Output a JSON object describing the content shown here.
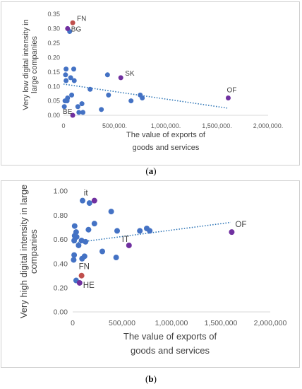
{
  "chart_data": [
    {
      "type": "scatter",
      "panel_label": "a",
      "xlabel_lines": [
        "The value of exports of",
        "goods and services"
      ],
      "ylabel_lines": [
        "Very low digital intensity in",
        "large companies"
      ],
      "xlim": [
        0,
        2000000
      ],
      "ylim": [
        0,
        0.35
      ],
      "x_ticks": [
        "0",
        "500,000.",
        "1,000,000.",
        "1,500,000.",
        "2,000,000."
      ],
      "y_ticks": [
        "0.00",
        "0.05",
        "0.10",
        "0.15",
        "0.20",
        "0.25",
        "0.30",
        "0.35"
      ],
      "x_tick_values": [
        0,
        500000,
        1000000,
        1500000,
        2000000
      ],
      "y_tick_values": [
        0,
        0.05,
        0.1,
        0.15,
        0.2,
        0.25,
        0.3,
        0.35
      ],
      "trendline": {
        "style": "dotted",
        "color": "#2e75b6",
        "x": [
          0,
          1600000
        ],
        "y": [
          0.108,
          0.025
        ]
      },
      "points": [
        {
          "x": 8000,
          "y": 0.03,
          "color": "#4472c4"
        },
        {
          "x": 15000,
          "y": 0.05,
          "color": "#4472c4"
        },
        {
          "x": 20000,
          "y": 0.14,
          "color": "#4472c4"
        },
        {
          "x": 25000,
          "y": 0.16,
          "color": "#4472c4"
        },
        {
          "x": 25000,
          "y": 0.12,
          "color": "#4472c4"
        },
        {
          "x": 35000,
          "y": 0.05,
          "color": "#4472c4"
        },
        {
          "x": 40000,
          "y": 0.06,
          "color": "#4472c4"
        },
        {
          "x": 60000,
          "y": 0.29,
          "color": "#4472c4"
        },
        {
          "x": 70000,
          "y": 0.13,
          "color": "#4472c4"
        },
        {
          "x": 80000,
          "y": 0.07,
          "color": "#4472c4"
        },
        {
          "x": 100000,
          "y": 0.16,
          "color": "#4472c4"
        },
        {
          "x": 105000,
          "y": 0.12,
          "color": "#4472c4"
        },
        {
          "x": 140000,
          "y": 0.03,
          "color": "#4472c4"
        },
        {
          "x": 150000,
          "y": 0.01,
          "color": "#4472c4"
        },
        {
          "x": 180000,
          "y": 0.04,
          "color": "#4472c4"
        },
        {
          "x": 190000,
          "y": 0.01,
          "color": "#4472c4"
        },
        {
          "x": 260000,
          "y": 0.09,
          "color": "#4472c4"
        },
        {
          "x": 370000,
          "y": 0.02,
          "color": "#4472c4"
        },
        {
          "x": 430000,
          "y": 0.14,
          "color": "#4472c4"
        },
        {
          "x": 440000,
          "y": 0.07,
          "color": "#4472c4"
        },
        {
          "x": 660000,
          "y": 0.05,
          "color": "#4472c4"
        },
        {
          "x": 750000,
          "y": 0.07,
          "color": "#4472c4"
        },
        {
          "x": 770000,
          "y": 0.06,
          "color": "#4472c4"
        },
        {
          "x": 90000,
          "y": 0.32,
          "color": "#c0504d",
          "label": "FN"
        },
        {
          "x": 40000,
          "y": 0.3,
          "color": "#7030a0",
          "label": "BG"
        },
        {
          "x": 560000,
          "y": 0.13,
          "color": "#7030a0",
          "label": "SK"
        },
        {
          "x": 1610000,
          "y": 0.06,
          "color": "#7030a0",
          "label": "OF"
        },
        {
          "x": 90000,
          "y": 0.0,
          "color": "#7030a0",
          "label": "BE"
        }
      ]
    },
    {
      "type": "scatter",
      "panel_label": "b",
      "xlabel_lines": [
        "The value of exports of",
        "goods and services"
      ],
      "ylabel_lines": [
        "Very high digital intensity in large",
        "companies"
      ],
      "xlim": [
        0,
        2000000
      ],
      "ylim": [
        0,
        1.0
      ],
      "x_ticks": [
        "0",
        "500,000",
        "1,000,000",
        "1,500,000",
        "2,000,000"
      ],
      "y_ticks": [
        "0.00",
        "0.20",
        "0.40",
        "0.60",
        "0.80",
        "1.00"
      ],
      "x_tick_values": [
        0,
        500000,
        1000000,
        1500000,
        2000000
      ],
      "y_tick_values": [
        0,
        0.2,
        0.4,
        0.6,
        0.8,
        1.0
      ],
      "trendline": {
        "style": "dotted",
        "color": "#2e75b6",
        "x": [
          0,
          1600000
        ],
        "y": [
          0.57,
          0.74
        ]
      },
      "points": [
        {
          "x": 10000,
          "y": 0.43,
          "color": "#4472c4"
        },
        {
          "x": 15000,
          "y": 0.47,
          "color": "#4472c4"
        },
        {
          "x": 15000,
          "y": 0.59,
          "color": "#4472c4"
        },
        {
          "x": 20000,
          "y": 0.63,
          "color": "#4472c4"
        },
        {
          "x": 20000,
          "y": 0.71,
          "color": "#4472c4"
        },
        {
          "x": 35000,
          "y": 0.66,
          "color": "#4472c4"
        },
        {
          "x": 35000,
          "y": 0.26,
          "color": "#4472c4"
        },
        {
          "x": 40000,
          "y": 0.62,
          "color": "#4472c4"
        },
        {
          "x": 60000,
          "y": 0.55,
          "color": "#4472c4"
        },
        {
          "x": 90000,
          "y": 0.59,
          "color": "#4472c4"
        },
        {
          "x": 95000,
          "y": 0.44,
          "color": "#4472c4"
        },
        {
          "x": 100000,
          "y": 0.92,
          "color": "#4472c4"
        },
        {
          "x": 120000,
          "y": 0.46,
          "color": "#4472c4"
        },
        {
          "x": 130000,
          "y": 0.58,
          "color": "#4472c4"
        },
        {
          "x": 160000,
          "y": 0.68,
          "color": "#4472c4"
        },
        {
          "x": 170000,
          "y": 0.9,
          "color": "#4472c4"
        },
        {
          "x": 220000,
          "y": 0.73,
          "color": "#4472c4"
        },
        {
          "x": 300000,
          "y": 0.5,
          "color": "#4472c4"
        },
        {
          "x": 390000,
          "y": 0.83,
          "color": "#4472c4"
        },
        {
          "x": 440000,
          "y": 0.45,
          "color": "#4472c4"
        },
        {
          "x": 450000,
          "y": 0.67,
          "color": "#4472c4"
        },
        {
          "x": 680000,
          "y": 0.67,
          "color": "#4472c4"
        },
        {
          "x": 750000,
          "y": 0.69,
          "color": "#4472c4"
        },
        {
          "x": 780000,
          "y": 0.67,
          "color": "#4472c4"
        },
        {
          "x": 220000,
          "y": 0.92,
          "color": "#7030a0",
          "label": "it"
        },
        {
          "x": 90000,
          "y": 0.3,
          "color": "#c0504d",
          "label": "FN"
        },
        {
          "x": 70000,
          "y": 0.24,
          "color": "#7030a0",
          "label": "HE"
        },
        {
          "x": 570000,
          "y": 0.55,
          "color": "#7030a0",
          "label": "IT"
        },
        {
          "x": 1610000,
          "y": 0.66,
          "color": "#7030a0",
          "label": "OF"
        }
      ]
    }
  ],
  "captions": [
    "(a)",
    "(b)"
  ]
}
